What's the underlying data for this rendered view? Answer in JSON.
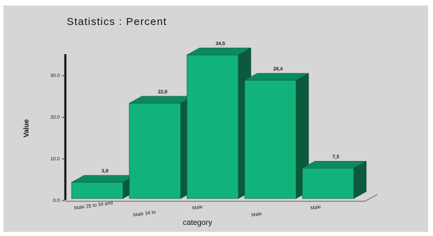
{
  "chart_data": {
    "type": "bar",
    "title": "Statistics : Percent",
    "xlabel": "category",
    "ylabel": "Value",
    "categories": [
      "Male 25 to 34 and",
      "Male 34 to",
      "Male",
      "Male",
      "Male"
    ],
    "values": [
      3.9,
      22.9,
      34.5,
      28.4,
      7.3
    ],
    "value_labels": [
      "3,9",
      "22,9",
      "34,5",
      "28,4",
      "7,3"
    ],
    "yticks": [
      "0.0",
      "10.0",
      "20.0",
      "30.0"
    ],
    "ylim": [
      0,
      35
    ],
    "grid": false,
    "legend": "none",
    "colors": {
      "front": "#12b37a",
      "top": "#0c8a5e",
      "side": "#0b5a3d",
      "background": "#d6d6d6"
    }
  }
}
